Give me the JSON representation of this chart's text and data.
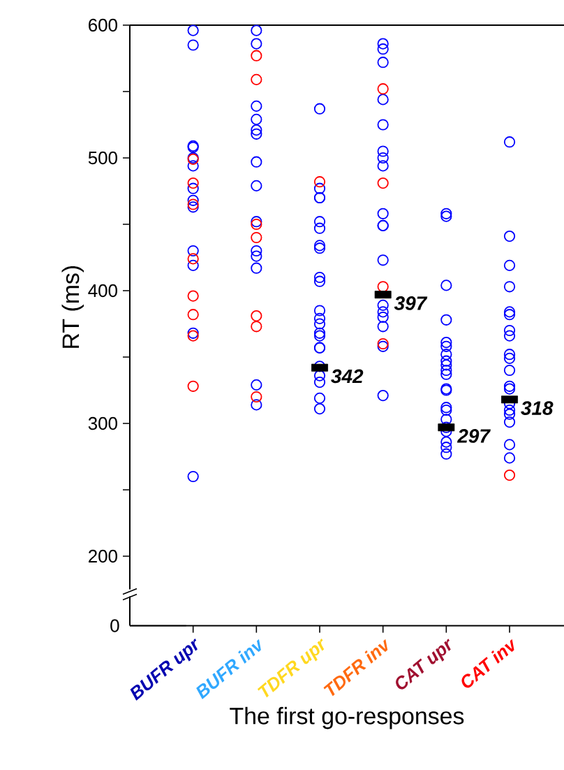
{
  "chart_data": {
    "type": "scatter",
    "ylabel": "RT (ms)",
    "xlabel": "The first go-responses",
    "categories": [
      "BUFR upr",
      "BUFR inv",
      "TDFR upr",
      "TDFR inv",
      "CAT upr",
      "CAT inv"
    ],
    "ylim": [
      175,
      600
    ],
    "yticks": [
      200,
      {
        "value": 250,
        "label": null
      },
      300,
      {
        "value": 350,
        "label": null
      },
      400,
      {
        "value": 450,
        "label": null
      },
      500,
      {
        "value": 550,
        "label": null
      },
      600
    ],
    "marker": "circle",
    "annotations": [
      "0"
    ],
    "series": [
      {
        "color": "#0000ff",
        "x": [
          "BUFR upr",
          "BUFR upr",
          "BUFR upr",
          "BUFR upr",
          "BUFR upr",
          "BUFR upr",
          "BUFR upr",
          "BUFR upr",
          "BUFR upr",
          "BUFR upr",
          "BUFR upr",
          "BUFR upr",
          "BUFR upr",
          "BUFR inv",
          "BUFR inv",
          "BUFR inv",
          "BUFR inv",
          "BUFR inv",
          "BUFR inv",
          "BUFR inv",
          "BUFR inv",
          "BUFR inv",
          "BUFR inv",
          "BUFR inv",
          "BUFR inv",
          "BUFR inv",
          "BUFR inv",
          "TDFR upr",
          "TDFR upr",
          "TDFR upr",
          "TDFR upr",
          "TDFR upr",
          "TDFR upr",
          "TDFR upr",
          "TDFR upr",
          "TDFR upr",
          "TDFR upr",
          "TDFR upr",
          "TDFR upr",
          "TDFR upr",
          "TDFR upr",
          "TDFR upr",
          "TDFR upr",
          "TDFR upr",
          "TDFR upr",
          "TDFR upr",
          "TDFR upr",
          "TDFR upr",
          "TDFR upr",
          "TDFR inv",
          "TDFR inv",
          "TDFR inv",
          "TDFR inv",
          "TDFR inv",
          "TDFR inv",
          "TDFR inv",
          "TDFR inv",
          "TDFR inv",
          "TDFR inv",
          "TDFR inv",
          "TDFR inv",
          "TDFR inv",
          "TDFR inv",
          "TDFR inv",
          "TDFR inv",
          "TDFR inv",
          "TDFR inv",
          "CAT upr",
          "CAT upr",
          "CAT upr",
          "CAT upr",
          "CAT upr",
          "CAT upr",
          "CAT upr",
          "CAT upr",
          "CAT upr",
          "CAT upr",
          "CAT upr",
          "CAT upr",
          "CAT upr",
          "CAT upr",
          "CAT upr",
          "CAT upr",
          "CAT upr",
          "CAT upr",
          "CAT upr",
          "CAT upr",
          "CAT upr",
          "CAT inv",
          "CAT inv",
          "CAT inv",
          "CAT inv",
          "CAT inv",
          "CAT inv",
          "CAT inv",
          "CAT inv",
          "CAT inv",
          "CAT inv",
          "CAT inv",
          "CAT inv",
          "CAT inv",
          "CAT inv",
          "CAT inv",
          "CAT inv",
          "CAT inv",
          "CAT inv",
          "CAT inv"
        ],
        "values": [
          596,
          585,
          509,
          508,
          500,
          494,
          477,
          468,
          463,
          430,
          419,
          368,
          260,
          596,
          586,
          539,
          529,
          521,
          518,
          497,
          479,
          452,
          430,
          426,
          417,
          329,
          314,
          537,
          477,
          470,
          470,
          452,
          447,
          434,
          432,
          410,
          407,
          385,
          379,
          375,
          368,
          366,
          357,
          357,
          343,
          336,
          331,
          319,
          311,
          586,
          582,
          572,
          544,
          525,
          505,
          500,
          494,
          458,
          449,
          449,
          423,
          389,
          384,
          380,
          373,
          358,
          321,
          458,
          456,
          404,
          378,
          361,
          358,
          352,
          347,
          344,
          340,
          337,
          325,
          326,
          312,
          310,
          303,
          297,
          294,
          286,
          282,
          277,
          512,
          441,
          419,
          403,
          384,
          382,
          370,
          366,
          352,
          349,
          340,
          328,
          326,
          315,
          310,
          307,
          301,
          284,
          274
        ]
      },
      {
        "color": "#ff0000",
        "x": [
          "BUFR upr",
          "BUFR upr",
          "BUFR upr",
          "BUFR upr",
          "BUFR upr",
          "BUFR upr",
          "BUFR upr",
          "BUFR upr",
          "BUFR inv",
          "BUFR inv",
          "BUFR inv",
          "BUFR inv",
          "BUFR inv",
          "BUFR inv",
          "BUFR inv",
          "TDFR upr",
          "TDFR inv",
          "TDFR inv",
          "TDFR inv",
          "TDFR inv",
          "CAT inv"
        ],
        "values": [
          499,
          481,
          465,
          424,
          396,
          382,
          366,
          328,
          577,
          559,
          450,
          440,
          381,
          373,
          320,
          482,
          552,
          481,
          403,
          360,
          261
        ]
      },
      {
        "color": "#000000",
        "marker": "square",
        "x": [
          "TDFR upr",
          "TDFR inv",
          "CAT upr",
          "CAT inv"
        ],
        "values": [
          342,
          397,
          297,
          318
        ],
        "value_labels": [
          "342",
          "397",
          "297",
          "318"
        ]
      }
    ]
  }
}
